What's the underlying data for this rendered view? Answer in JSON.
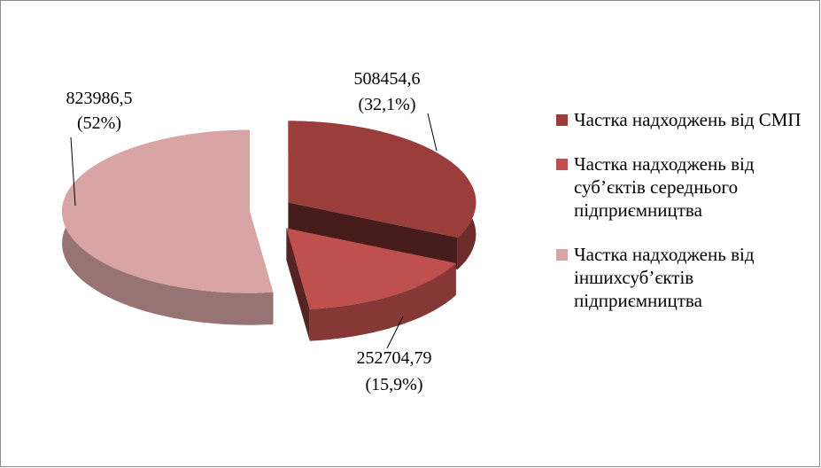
{
  "chart_data": {
    "type": "pie",
    "series": [
      {
        "name": "Частка надходжень від СМП",
        "color": "#9b3d3b"
      },
      {
        "name": "Частка надходжень від суб’єктів середнього підприємництва",
        "color": "#c0504d"
      },
      {
        "name": "Частка надходжень від іншихсуб’єктів підприємництва",
        "color": "#d9a5a4"
      }
    ],
    "values": [
      508454.6,
      252704.79,
      823986.5
    ],
    "value_labels": [
      "508454,6",
      "252704,79",
      "823986,5"
    ],
    "percent_labels": [
      "(32,1%)",
      "(15,9%)",
      "(52%)"
    ],
    "legend": "right"
  }
}
